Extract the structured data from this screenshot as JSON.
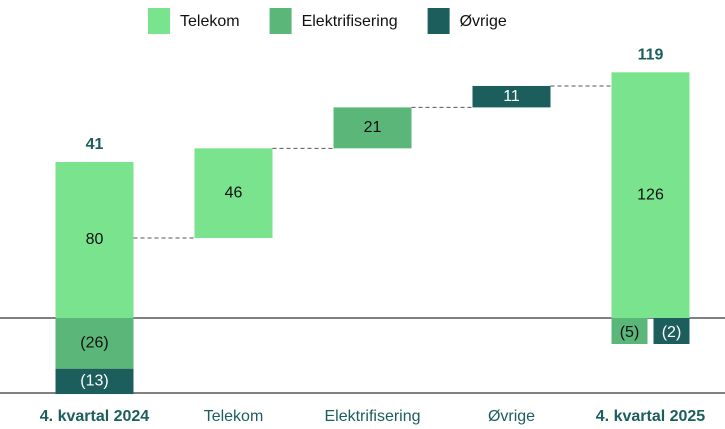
{
  "chart_data": {
    "type": "waterfall",
    "categories": [
      "4. kvartal 2024",
      "Telekom",
      "Elektrifisering",
      "Øvrige",
      "4. kvartal 2025"
    ],
    "series": [
      {
        "name": "Telekom",
        "color": "#79e38d",
        "values": [
          80,
          46,
          null,
          null,
          126
        ]
      },
      {
        "name": "Elektrifisering",
        "color": "#5bb67a",
        "values": [
          -26,
          null,
          21,
          null,
          -5
        ],
        "value_labels": [
          "(26)",
          null,
          null,
          null,
          "(5)"
        ]
      },
      {
        "name": "Øvrige",
        "color": "#1b5e5c",
        "values": [
          -13,
          null,
          null,
          11,
          -2
        ],
        "value_labels": [
          "(13)",
          null,
          null,
          null,
          "(2)"
        ]
      }
    ],
    "totals": [
      41,
      null,
      null,
      null,
      119
    ],
    "legend": "top"
  }
}
